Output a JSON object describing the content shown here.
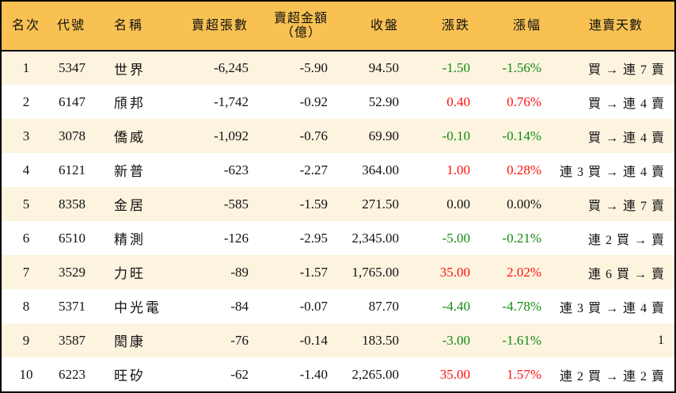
{
  "table": {
    "headers": {
      "rank": "名次",
      "code": "代號",
      "name": "名稱",
      "net_sell_shares": "賣超張數",
      "net_sell_amount_line1": "賣超金額",
      "net_sell_amount_line2": "（億）",
      "close": "收盤",
      "change": "漲跌",
      "change_pct": "漲幅",
      "streak": "連賣天數"
    },
    "colors": {
      "header_bg": "#F8C152",
      "row_odd_bg": "#FDF4E0",
      "row_even_bg": "#FFFFFF",
      "up": "#FF1010",
      "down": "#128A12",
      "flat": "#111111",
      "border": "#000000"
    },
    "rows": [
      {
        "rank": "1",
        "code": "5347",
        "name": "世界",
        "shares": "-6,245",
        "amount": "-5.90",
        "close": "94.50",
        "change": "-1.50",
        "pct": "-1.56%",
        "direction": "down",
        "streak": "買 → 連 7 賣"
      },
      {
        "rank": "2",
        "code": "6147",
        "name": "頎邦",
        "shares": "-1,742",
        "amount": "-0.92",
        "close": "52.90",
        "change": "0.40",
        "pct": "0.76%",
        "direction": "up",
        "streak": "買 → 連 4 賣"
      },
      {
        "rank": "3",
        "code": "3078",
        "name": "僑威",
        "shares": "-1,092",
        "amount": "-0.76",
        "close": "69.90",
        "change": "-0.10",
        "pct": "-0.14%",
        "direction": "down",
        "streak": "買 → 連 4 賣"
      },
      {
        "rank": "4",
        "code": "6121",
        "name": "新普",
        "shares": "-623",
        "amount": "-2.27",
        "close": "364.00",
        "change": "1.00",
        "pct": "0.28%",
        "direction": "up",
        "streak": "連 3 買 → 連 4 賣"
      },
      {
        "rank": "5",
        "code": "8358",
        "name": "金居",
        "shares": "-585",
        "amount": "-1.59",
        "close": "271.50",
        "change": "0.00",
        "pct": "0.00%",
        "direction": "flat",
        "streak": "買 → 連 7 賣"
      },
      {
        "rank": "6",
        "code": "6510",
        "name": "精測",
        "shares": "-126",
        "amount": "-2.95",
        "close": "2,345.00",
        "change": "-5.00",
        "pct": "-0.21%",
        "direction": "down",
        "streak": "連 2 買 → 賣"
      },
      {
        "rank": "7",
        "code": "3529",
        "name": "力旺",
        "shares": "-89",
        "amount": "-1.57",
        "close": "1,765.00",
        "change": "35.00",
        "pct": "2.02%",
        "direction": "up",
        "streak": "連 6 買 → 賣"
      },
      {
        "rank": "8",
        "code": "5371",
        "name": "中光電",
        "shares": "-84",
        "amount": "-0.07",
        "close": "87.70",
        "change": "-4.40",
        "pct": "-4.78%",
        "direction": "down",
        "streak": "連 3 買 → 連 4 賣"
      },
      {
        "rank": "9",
        "code": "3587",
        "name": "閎康",
        "shares": "-76",
        "amount": "-0.14",
        "close": "183.50",
        "change": "-3.00",
        "pct": "-1.61%",
        "direction": "down",
        "streak": "1"
      },
      {
        "rank": "10",
        "code": "6223",
        "name": "旺矽",
        "shares": "-62",
        "amount": "-1.40",
        "close": "2,265.00",
        "change": "35.00",
        "pct": "1.57%",
        "direction": "up",
        "streak": "連 2 買 → 連 2 賣"
      }
    ]
  }
}
